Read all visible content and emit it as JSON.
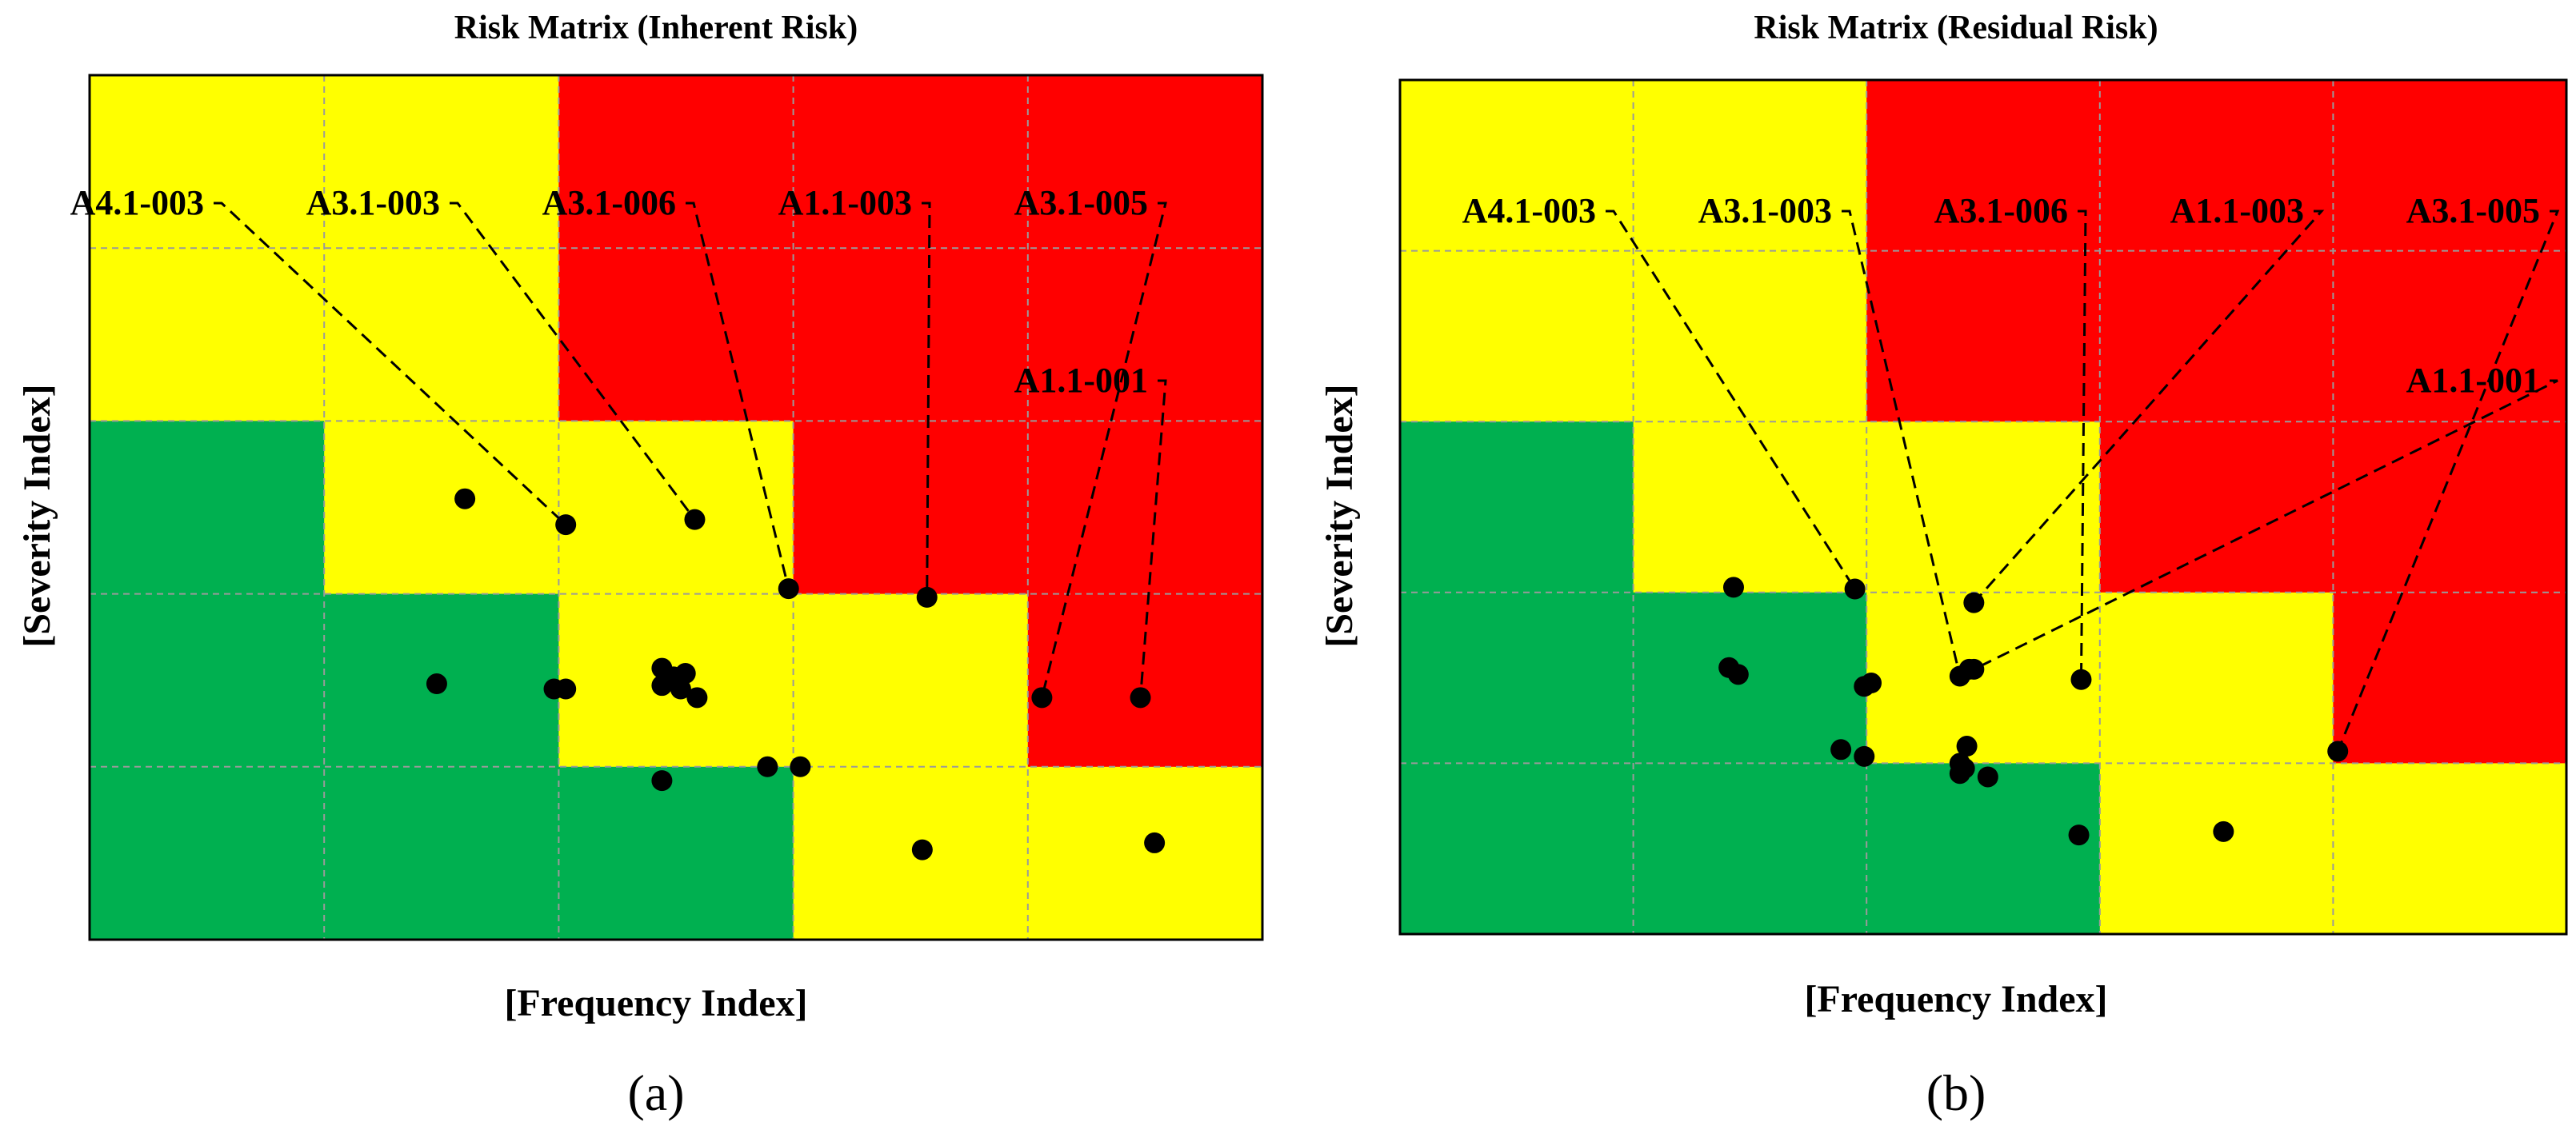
{
  "figure": {
    "cell_colors": {
      "green": "#00b050",
      "yellow": "#ffff00",
      "red": "#ff0000"
    },
    "point_color": "#000000",
    "gridlines": true
  },
  "chart_data": [
    {
      "type": "scatter",
      "subfigure_label": "(a)",
      "title": "Risk Matrix (Inherent Risk)",
      "xlabel": "[Frequency Index]",
      "ylabel": "[Severity Index]",
      "xlim": [
        0,
        5
      ],
      "ylim": [
        0,
        5
      ],
      "matrix_rows_top_to_bottom": [
        [
          "yellow",
          "yellow",
          "red",
          "red",
          "red"
        ],
        [
          "yellow",
          "yellow",
          "red",
          "red",
          "red"
        ],
        [
          "green",
          "yellow",
          "yellow",
          "red",
          "red"
        ],
        [
          "green",
          "green",
          "yellow",
          "yellow",
          "red"
        ],
        [
          "green",
          "green",
          "green",
          "yellow",
          "yellow"
        ]
      ],
      "points": [
        {
          "x": 1.6,
          "y": 2.55
        },
        {
          "x": 2.03,
          "y": 2.4
        },
        {
          "x": 2.58,
          "y": 2.43
        },
        {
          "x": 2.98,
          "y": 2.03
        },
        {
          "x": 3.57,
          "y": 1.98
        },
        {
          "x": 4.06,
          "y": 1.4
        },
        {
          "x": 4.48,
          "y": 1.4
        },
        {
          "x": 1.48,
          "y": 1.48
        },
        {
          "x": 1.98,
          "y": 1.45
        },
        {
          "x": 2.03,
          "y": 1.45
        },
        {
          "x": 2.44,
          "y": 1.57
        },
        {
          "x": 2.49,
          "y": 1.52
        },
        {
          "x": 2.54,
          "y": 1.54
        },
        {
          "x": 2.44,
          "y": 1.47
        },
        {
          "x": 2.52,
          "y": 1.45
        },
        {
          "x": 2.59,
          "y": 1.4
        },
        {
          "x": 2.44,
          "y": 0.92
        },
        {
          "x": 2.89,
          "y": 1.0
        },
        {
          "x": 3.03,
          "y": 1.0
        },
        {
          "x": 3.55,
          "y": 0.52
        },
        {
          "x": 4.54,
          "y": 0.56
        }
      ],
      "annotations": [
        {
          "text": "A4.1-003",
          "x": 2.03,
          "y": 2.4
        },
        {
          "text": "A3.1-003",
          "x": 2.58,
          "y": 2.43
        },
        {
          "text": "A3.1-006",
          "x": 2.98,
          "y": 2.03
        },
        {
          "text": "A1.1-003",
          "x": 3.57,
          "y": 1.98
        },
        {
          "text": "A3.1-005",
          "x": 4.06,
          "y": 1.4
        },
        {
          "text": "A1.1-001",
          "x": 4.48,
          "y": 1.4
        }
      ]
    },
    {
      "type": "scatter",
      "subfigure_label": "(b)",
      "title": "Risk Matrix (Residual Risk)",
      "xlabel": "[Frequency Index]",
      "ylabel": "[Severity Index]",
      "xlim": [
        0,
        5
      ],
      "ylim": [
        0,
        5
      ],
      "matrix_rows_top_to_bottom": [
        [
          "yellow",
          "yellow",
          "red",
          "red",
          "red"
        ],
        [
          "yellow",
          "yellow",
          "red",
          "red",
          "red"
        ],
        [
          "green",
          "yellow",
          "yellow",
          "red",
          "red"
        ],
        [
          "green",
          "green",
          "yellow",
          "yellow",
          "red"
        ],
        [
          "green",
          "green",
          "green",
          "yellow",
          "yellow"
        ]
      ],
      "points": [
        {
          "x": 1.43,
          "y": 2.03
        },
        {
          "x": 1.41,
          "y": 1.56
        },
        {
          "x": 1.45,
          "y": 1.52
        },
        {
          "x": 1.95,
          "y": 2.02
        },
        {
          "x": 1.99,
          "y": 1.45
        },
        {
          "x": 2.02,
          "y": 1.47
        },
        {
          "x": 1.89,
          "y": 1.08
        },
        {
          "x": 1.99,
          "y": 1.04
        },
        {
          "x": 2.46,
          "y": 1.94
        },
        {
          "x": 2.4,
          "y": 1.51
        },
        {
          "x": 2.44,
          "y": 1.55
        },
        {
          "x": 2.46,
          "y": 1.55
        },
        {
          "x": 2.43,
          "y": 1.1
        },
        {
          "x": 2.4,
          "y": 1.0
        },
        {
          "x": 2.42,
          "y": 0.97
        },
        {
          "x": 2.4,
          "y": 0.94
        },
        {
          "x": 2.52,
          "y": 0.92
        },
        {
          "x": 2.92,
          "y": 1.49
        },
        {
          "x": 2.91,
          "y": 0.58
        },
        {
          "x": 3.53,
          "y": 0.6
        },
        {
          "x": 4.02,
          "y": 1.07
        }
      ],
      "annotations": [
        {
          "text": "A4.1-003",
          "x": 1.95,
          "y": 2.02
        },
        {
          "text": "A3.1-003",
          "x": 2.4,
          "y": 1.51
        },
        {
          "text": "A3.1-006",
          "x": 2.92,
          "y": 1.49
        },
        {
          "text": "A1.1-003",
          "x": 2.46,
          "y": 1.94
        },
        {
          "text": "A3.1-005",
          "x": 4.02,
          "y": 1.07
        },
        {
          "text": "A1.1-001",
          "x": 2.46,
          "y": 1.55
        }
      ]
    }
  ]
}
